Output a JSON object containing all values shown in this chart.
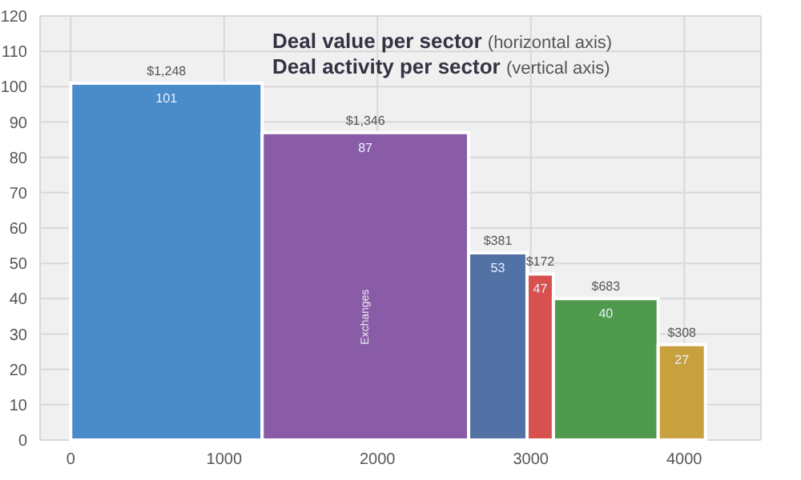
{
  "chart_data": {
    "type": "histogram",
    "title": "Deal value per sector (horizontal axis)",
    "subtitle": "Deal activity per sector (vertical axis)",
    "bins": [
      0,
      1248,
      2594,
      2975,
      3147,
      3830,
      4138
    ],
    "values": [
      101,
      87,
      53,
      47,
      40,
      27
    ],
    "colors": [
      "#4a8bc9",
      "#8a5ca8",
      "#5272a6",
      "#d9514e",
      "#4f9a4c",
      "#c9a03e"
    ],
    "data_labels": true,
    "annotations": [
      {
        "text": "$1,248",
        "x": 624,
        "y": 101
      },
      {
        "text": "$1,346",
        "x": 1921,
        "y": 87
      },
      {
        "text": "$381",
        "x": 2784.5,
        "y": 53
      },
      {
        "text": "$172",
        "x": 3061,
        "y": 47
      },
      {
        "text": "$683",
        "x": 3488.5,
        "y": 40
      },
      {
        "text": "$308",
        "x": 3984,
        "y": 27
      },
      "Exchanges"
    ],
    "xlim": [
      -200,
      4500
    ],
    "xticks": [
      0,
      1000,
      2000,
      3000,
      4000
    ],
    "ylim": [
      0,
      120
    ],
    "yticks": [
      0,
      10,
      20,
      30,
      40,
      50,
      60,
      70,
      80,
      90,
      100,
      110,
      120
    ],
    "grid": true
  }
}
